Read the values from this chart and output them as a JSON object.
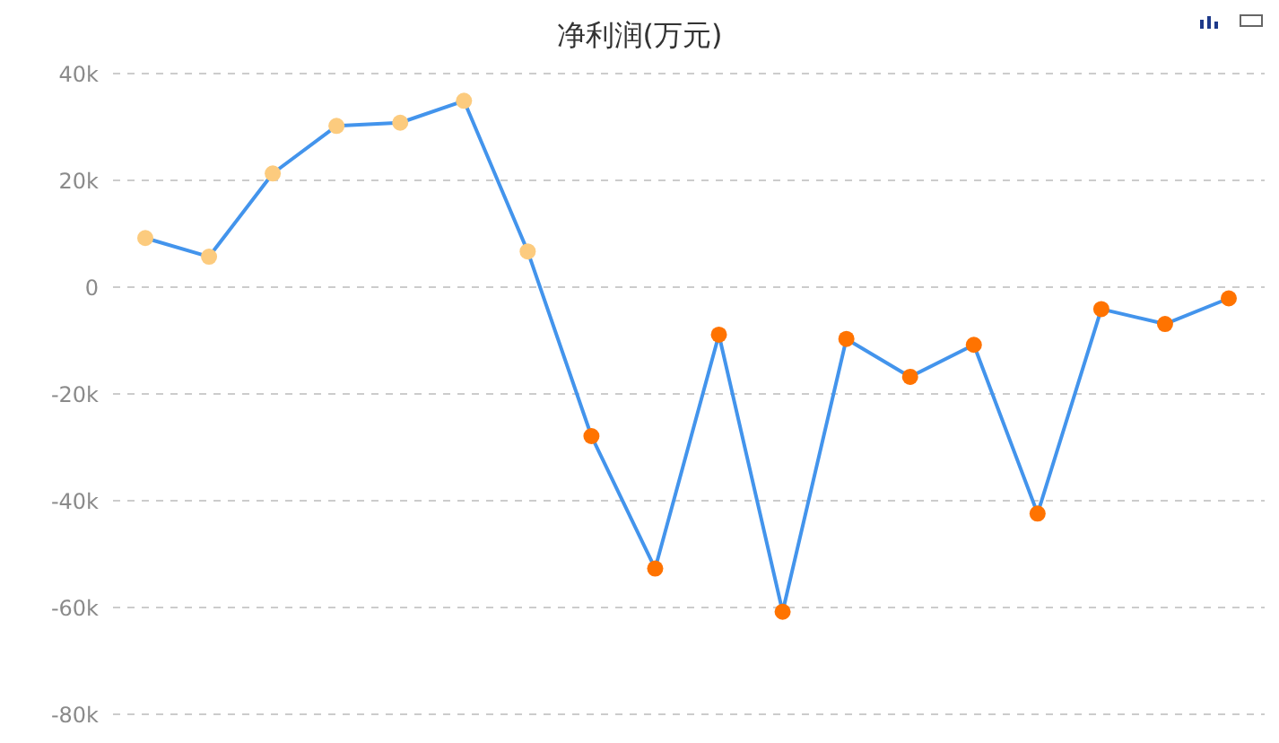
{
  "chart_data": {
    "type": "line",
    "title": "净利润(万元)",
    "categories": [
      null,
      null,
      null,
      null,
      null,
      null,
      null,
      null,
      null,
      null,
      null,
      null,
      null,
      null,
      null,
      null,
      null,
      null
    ],
    "series": [
      {
        "color": "#4394ec",
        "colors": [
          "#fccb7e",
          "#fccb7e",
          "#fccb7e",
          "#fccb7e",
          "#fccb7e",
          "#fccb7e",
          "#fccb7e",
          "#ff7300",
          "#ff7300",
          "#ff7300",
          "#ff7300",
          "#ff7300",
          "#ff7300",
          "#ff7300",
          "#ff7300",
          "#ff7300",
          "#ff7300",
          "#ff7300"
        ],
        "values": [
          9200,
          5700,
          21300,
          30200,
          30800,
          34900,
          6700,
          -27900,
          -52700,
          -8900,
          -60800,
          -9700,
          -16800,
          -10800,
          -42400,
          -4100,
          -6900,
          -2100
        ]
      }
    ],
    "ylim": [
      -80000,
      40000
    ],
    "yticks": [
      {
        "value": -80000,
        "label": "-80k"
      },
      {
        "value": -60000,
        "label": "-60k"
      },
      {
        "value": -40000,
        "label": "-40k"
      },
      {
        "value": -20000,
        "label": "-20k"
      },
      0,
      {
        "value": 20000,
        "label": "20k"
      },
      {
        "value": 40000,
        "label": "40k"
      }
    ],
    "grid": "y",
    "marker": "circle",
    "line_style": "solid",
    "tick_labels": "y"
  }
}
